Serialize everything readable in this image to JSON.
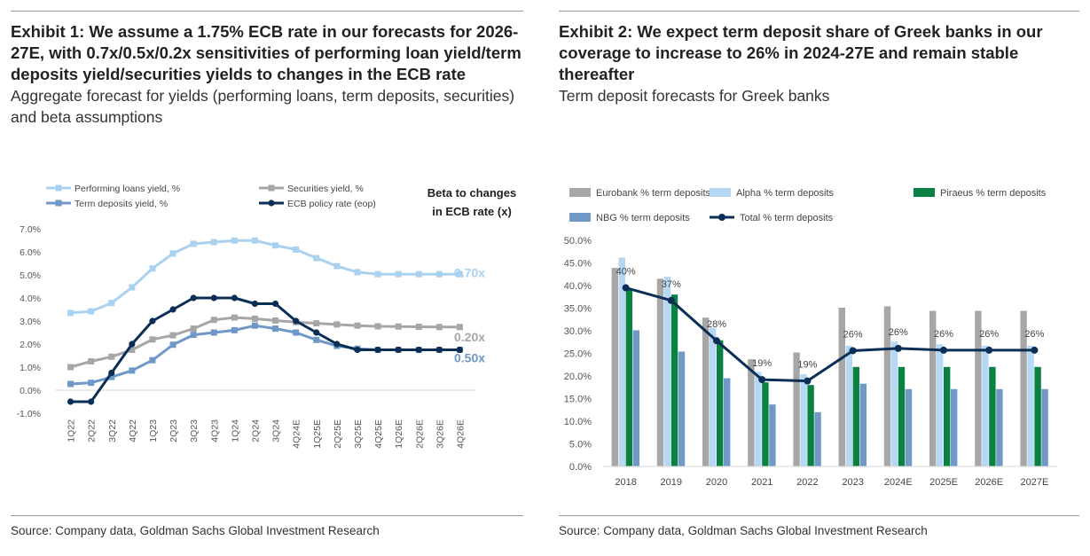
{
  "exhibit1": {
    "title": "Exhibit 1: We assume a 1.75% ECB rate in our forecasts for 2026-27E, with 0.7x/0.5x/0.2x sensitivities of performing loan yield/term deposits yield/securities yields to changes in the ECB rate",
    "subtitle": "Aggregate forecast for yields (performing loans, term deposits, securities) and beta assumptions",
    "source": "Source: Company data, Goldman Sachs Global Investment Research"
  },
  "exhibit2": {
    "title": "Exhibit 2: We expect term deposit share of Greek banks in our coverage to increase to 26% in 2024-27E and remain stable thereafter",
    "subtitle": "Term deposit forecasts for Greek banks",
    "source": "Source: Company data, Goldman Sachs Global Investment Research"
  },
  "chart_data": [
    {
      "type": "line",
      "x": [
        "1Q22",
        "2Q22",
        "3Q22",
        "4Q22",
        "1Q23",
        "2Q23",
        "3Q23",
        "4Q23",
        "1Q24",
        "2Q24",
        "3Q24",
        "4Q24E",
        "1Q25E",
        "2Q25E",
        "3Q25E",
        "4Q25E",
        "1Q26E",
        "2Q26E",
        "3Q26E",
        "4Q26E"
      ],
      "ylim": [
        -1,
        7
      ],
      "yticks": [
        "-1.0%",
        "0.0%",
        "1.0%",
        "2.0%",
        "3.0%",
        "4.0%",
        "5.0%",
        "6.0%",
        "7.0%"
      ],
      "beta_title": "Beta to changes in ECB rate (x)",
      "series": [
        {
          "name": "Performing loans yield, %",
          "color": "#a9d1f0",
          "marker": "square",
          "beta": "0.70x",
          "values": [
            3.35,
            3.42,
            3.78,
            4.46,
            5.28,
            5.93,
            6.35,
            6.42,
            6.49,
            6.49,
            6.28,
            6.1,
            5.73,
            5.38,
            5.12,
            5.03,
            5.03,
            5.03,
            5.03,
            5.03
          ]
        },
        {
          "name": "Securities yield, %",
          "color": "#a6a6a6",
          "marker": "square",
          "beta": "0.20x",
          "values": [
            1.0,
            1.25,
            1.45,
            1.75,
            2.2,
            2.38,
            2.67,
            3.05,
            3.15,
            3.1,
            3.02,
            2.95,
            2.9,
            2.85,
            2.8,
            2.77,
            2.76,
            2.75,
            2.74,
            2.74
          ]
        },
        {
          "name": "Term deposits yield, %",
          "color": "#6f98c8",
          "marker": "square",
          "beta": "0.50x",
          "values": [
            0.27,
            0.32,
            0.57,
            0.85,
            1.3,
            1.97,
            2.4,
            2.5,
            2.6,
            2.8,
            2.67,
            2.5,
            2.18,
            1.92,
            1.8,
            1.75,
            1.75,
            1.75,
            1.75,
            1.75
          ]
        },
        {
          "name": "ECB policy rate (eop)",
          "color": "#0b2e57",
          "marker": "circle",
          "values": [
            -0.5,
            -0.5,
            0.75,
            2.0,
            3.0,
            3.5,
            4.0,
            4.0,
            4.0,
            3.75,
            3.75,
            3.0,
            2.5,
            2.0,
            1.75,
            1.75,
            1.75,
            1.75,
            1.75,
            1.75
          ]
        }
      ]
    },
    {
      "type": "bar",
      "categories": [
        "2018",
        "2019",
        "2020",
        "2021",
        "2022",
        "2023",
        "2024E",
        "2025E",
        "2026E",
        "2027E"
      ],
      "ylim": [
        0,
        50
      ],
      "yticks": [
        "0.0%",
        "5.0%",
        "10.0%",
        "15.0%",
        "20.0%",
        "25.0%",
        "30.0%",
        "35.0%",
        "40.0%",
        "45.0%",
        "50.0%"
      ],
      "series": [
        {
          "name": "Eurobank % term deposits",
          "color": "#a6a6a6",
          "values": [
            43.9,
            41.5,
            32.9,
            23.7,
            25.2,
            35.1,
            35.4,
            34.4,
            34.4,
            34.4
          ]
        },
        {
          "name": "Alpha % term deposits",
          "color": "#b5d9f5",
          "values": [
            46.2,
            42.0,
            30.7,
            20.9,
            20.4,
            26.7,
            27.6,
            27.0,
            26.7,
            26.7
          ]
        },
        {
          "name": "Piraeus % term deposits",
          "color": "#0a8043",
          "values": [
            39.2,
            38.0,
            27.9,
            18.6,
            18.0,
            22.0,
            22.0,
            22.0,
            22.0,
            22.0
          ]
        },
        {
          "name": "NBG % term deposits",
          "color": "#7199c6",
          "values": [
            30.1,
            25.4,
            19.5,
            13.7,
            12.0,
            18.3,
            17.1,
            17.1,
            17.1,
            17.1
          ]
        }
      ],
      "line": {
        "name": "Total % term deposits",
        "color": "#0b2e57",
        "values": [
          39.5,
          36.7,
          27.8,
          19.2,
          18.9,
          25.6,
          26.1,
          25.7,
          25.7,
          25.7
        ],
        "labels": [
          "40%",
          "37%",
          "28%",
          "19%",
          "19%",
          "26%",
          "26%",
          "26%",
          "26%",
          "26%"
        ]
      }
    }
  ]
}
